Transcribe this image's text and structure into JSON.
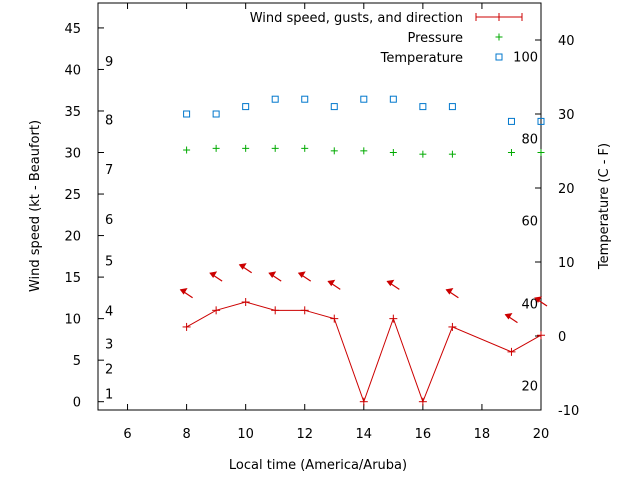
{
  "chart_data": {
    "type": "line",
    "xlabel": "Local time (America/Aruba)",
    "ylabel_left": "Wind speed (kt - Beaufort)",
    "ylabel_right": "Temperature (C - F)",
    "xlim": [
      5,
      20
    ],
    "ylim_left": [
      -1,
      48
    ],
    "ylim_right": [
      -10,
      45
    ],
    "x_ticks": [
      6,
      8,
      10,
      12,
      14,
      16,
      18,
      20
    ],
    "y_left_ticks": [
      0,
      5,
      10,
      15,
      20,
      25,
      30,
      35,
      40,
      45
    ],
    "y_right_ticks": [
      -10,
      0,
      10,
      20,
      30,
      40
    ],
    "grid": false,
    "legend_position": "top-right",
    "beaufort_scale": [
      {
        "label": "1",
        "kt": 1
      },
      {
        "label": "2",
        "kt": 4
      },
      {
        "label": "3",
        "kt": 7
      },
      {
        "label": "4",
        "kt": 11
      },
      {
        "label": "5",
        "kt": 17
      },
      {
        "label": "6",
        "kt": 22
      },
      {
        "label": "7",
        "kt": 28
      },
      {
        "label": "8",
        "kt": 34
      },
      {
        "label": "9",
        "kt": 41
      }
    ],
    "fahrenheit_scale": [
      {
        "label": "20",
        "celsius": -6.7
      },
      {
        "label": "40",
        "celsius": 4.4
      },
      {
        "label": "60",
        "celsius": 15.6
      },
      {
        "label": "80",
        "celsius": 26.7
      },
      {
        "label": "100",
        "celsius": 37.8
      }
    ],
    "series": [
      {
        "name": "Wind speed, gusts, and direction",
        "axis": "left",
        "color": "#cc0000",
        "style": "line-plus",
        "x": [
          8,
          9,
          10,
          11,
          12,
          13,
          14,
          15,
          16,
          17,
          19,
          20
        ],
        "y": [
          9,
          11,
          12,
          11,
          11,
          10,
          0,
          10,
          0,
          9,
          6,
          8
        ]
      },
      {
        "name": "Wind direction arrows",
        "axis": "left",
        "color": "#cc0000",
        "style": "arrows",
        "x": [
          8,
          9,
          10,
          11,
          12,
          13,
          15,
          17,
          19,
          20
        ],
        "y": [
          13,
          15,
          16,
          15,
          15,
          14,
          14,
          13,
          10,
          12
        ]
      },
      {
        "name": "Pressure",
        "axis": "left",
        "color": "#00aa00",
        "style": "plus",
        "x": [
          8,
          9,
          10,
          11,
          12,
          13,
          14,
          15,
          16,
          17,
          19,
          20
        ],
        "y": [
          30.3,
          30.5,
          30.5,
          30.5,
          30.5,
          30.2,
          30.2,
          30.0,
          29.8,
          29.8,
          30.0,
          30.0
        ]
      },
      {
        "name": "Temperature",
        "axis": "right",
        "color": "#0077cc",
        "style": "square",
        "x": [
          8,
          9,
          10,
          11,
          12,
          13,
          14,
          15,
          16,
          17,
          19,
          20
        ],
        "y": [
          30,
          30,
          31,
          32,
          32,
          31,
          32,
          32,
          31,
          31,
          29,
          29
        ]
      }
    ]
  }
}
